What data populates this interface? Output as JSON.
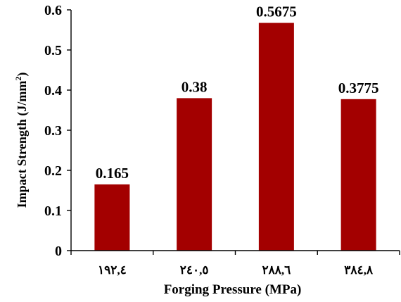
{
  "chart_data": {
    "type": "bar",
    "categories": [
      "١٩٢,٤",
      "٢٤٠,٥",
      "٢٨٨,٦",
      "٣٨٤,٨"
    ],
    "values": [
      0.165,
      0.38,
      0.5675,
      0.3775
    ],
    "data_labels": [
      "0.165",
      "0.38",
      "0.5675",
      "0.3775"
    ],
    "xlabel": "Forging Pressure (MPa)",
    "ylabel": "Impact Strength (J/mm",
    "ylabel_sup": "2",
    "ylabel_close": ")",
    "ylim": [
      0,
      0.6
    ],
    "yticks": [
      "0",
      "0.1",
      "0.2",
      "0.3",
      "0.4",
      "0.5",
      "0.6"
    ],
    "bar_color": "#a30000",
    "grid": false,
    "legend": "none"
  }
}
